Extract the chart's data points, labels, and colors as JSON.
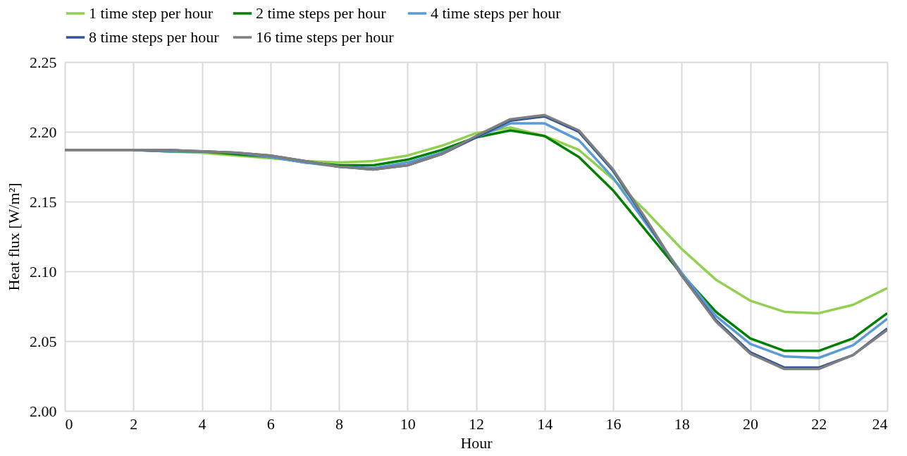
{
  "chart_data": {
    "type": "line",
    "xlabel": "Hour",
    "ylabel": "Heat flux [W/m²]",
    "x": [
      0,
      1,
      2,
      3,
      4,
      5,
      6,
      7,
      8,
      9,
      10,
      11,
      12,
      13,
      14,
      15,
      16,
      17,
      18,
      19,
      20,
      21,
      22,
      23,
      24
    ],
    "series": [
      {
        "name": "1 time step per hour",
        "color": "#92d050",
        "values": [
          null,
          null,
          2.187,
          2.186,
          2.185,
          2.183,
          2.181,
          2.179,
          2.178,
          2.179,
          2.183,
          2.19,
          2.199,
          2.203,
          2.197,
          2.187,
          2.166,
          2.142,
          2.116,
          2.094,
          2.079,
          2.071,
          2.07,
          2.076,
          2.088
        ]
      },
      {
        "name": "2 time steps per hour",
        "color": "#008000",
        "values": [
          null,
          null,
          2.187,
          2.186,
          2.186,
          2.184,
          2.182,
          2.178,
          2.176,
          2.176,
          2.18,
          2.187,
          2.196,
          2.201,
          2.197,
          2.182,
          2.158,
          2.128,
          2.098,
          2.071,
          2.052,
          2.043,
          2.043,
          2.052,
          2.07
        ]
      },
      {
        "name": "4 time steps per hour",
        "color": "#5b9bd5",
        "values": [
          null,
          null,
          2.187,
          2.186,
          2.186,
          2.185,
          2.182,
          2.178,
          2.175,
          2.174,
          2.178,
          2.185,
          2.196,
          2.206,
          2.206,
          2.194,
          2.167,
          2.133,
          2.099,
          2.068,
          2.048,
          2.039,
          2.038,
          2.047,
          2.066
        ]
      },
      {
        "name": "8 time steps per hour",
        "color": "#2f5597",
        "values": [
          2.187,
          2.187,
          2.187,
          2.187,
          2.186,
          2.185,
          2.183,
          2.179,
          2.175,
          2.173,
          2.176,
          2.184,
          2.196,
          2.208,
          2.211,
          2.2,
          2.172,
          2.135,
          2.097,
          2.065,
          2.042,
          2.031,
          2.031,
          2.04,
          2.059
        ]
      },
      {
        "name": "16 time steps per hour",
        "color": "#7f7f7f",
        "values": [
          2.187,
          2.187,
          2.187,
          2.187,
          2.186,
          2.185,
          2.183,
          2.179,
          2.175,
          2.173,
          2.176,
          2.184,
          2.197,
          2.209,
          2.212,
          2.201,
          2.173,
          2.136,
          2.097,
          2.064,
          2.041,
          2.03,
          2.03,
          2.04,
          2.058
        ]
      }
    ],
    "xlim": [
      0,
      24
    ],
    "xticks": [
      0,
      2,
      4,
      6,
      8,
      10,
      12,
      14,
      16,
      18,
      20,
      22,
      24
    ],
    "ylim": [
      2.0,
      2.25
    ],
    "yticks": [
      {
        "value": 2.0,
        "label": "2.00"
      },
      2.05,
      {
        "value": 2.1,
        "label": "2.10"
      },
      2.15,
      {
        "value": 2.2,
        "label": "2.20"
      },
      2.25
    ],
    "grid": true,
    "legend": "top",
    "marker": "none",
    "line_style": "solid"
  }
}
